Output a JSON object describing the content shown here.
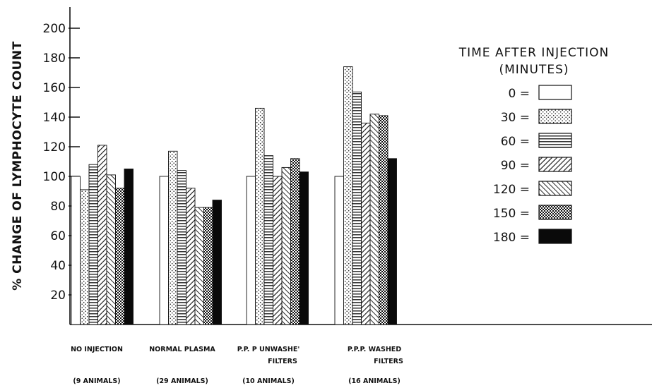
{
  "chart_data": {
    "type": "bar",
    "ylabel": "% CHANGE OF LYMPHOCYTE COUNT",
    "ylim": [
      0,
      210
    ],
    "yticks": [
      20,
      40,
      60,
      80,
      100,
      120,
      140,
      160,
      180,
      200
    ],
    "grid": false,
    "legend": {
      "title_line1": "TIME AFTER INJECTION",
      "title_line2": "(MINUTES)",
      "placement": "right"
    },
    "categories": [
      {
        "line1": "NO INJECTION",
        "line2": "",
        "animals": "(9 ANIMALS)"
      },
      {
        "line1": "NORMAL PLASMA",
        "line2": "",
        "animals": "(29 ANIMALS)"
      },
      {
        "line1": "P.P. P UNWASHE'",
        "line2": "FILTERS",
        "animals": "(10 ANIMALS)"
      },
      {
        "line1": "P.P.P. WASHED",
        "line2": "FILTERS",
        "animals": "(16 ANIMALS)"
      }
    ],
    "series": [
      {
        "name": "0",
        "label": "0 =",
        "pattern": "empty",
        "values": [
          100,
          100,
          100,
          100
        ]
      },
      {
        "name": "30",
        "label": "30 =",
        "pattern": "dots",
        "values": [
          91,
          117,
          146,
          174
        ]
      },
      {
        "name": "60",
        "label": "60 =",
        "pattern": "hlines",
        "values": [
          108,
          104,
          114,
          157
        ]
      },
      {
        "name": "90",
        "label": "90 =",
        "pattern": "diag-right",
        "values": [
          121,
          92,
          100,
          136
        ]
      },
      {
        "name": "120",
        "label": "120 =",
        "pattern": "diag-left",
        "values": [
          101,
          79,
          106,
          142
        ]
      },
      {
        "name": "150",
        "label": "150 =",
        "pattern": "crosshatch",
        "values": [
          92,
          79,
          112,
          141
        ]
      },
      {
        "name": "180",
        "label": "180 =",
        "pattern": "solid",
        "values": [
          105,
          84,
          103,
          112
        ]
      }
    ]
  }
}
